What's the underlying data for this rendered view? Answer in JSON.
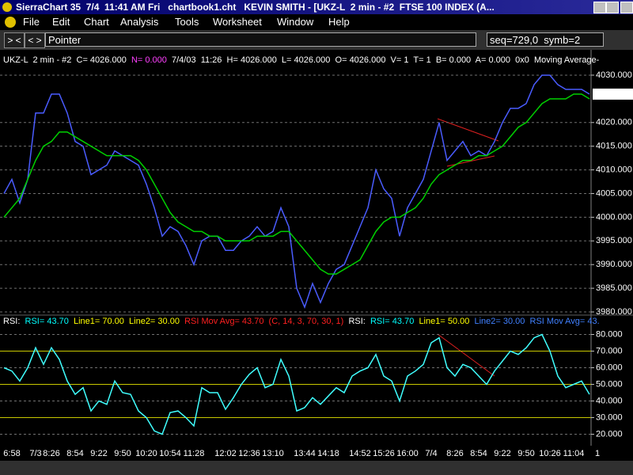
{
  "window_title": "SierraChart 35  7/4  11:41 AM Fri   chartbook1.cht   KEVIN SMITH - [UKZ-L  2 min - #2  FTSE 100 INDEX (A...",
  "menu": [
    "File",
    "Edit",
    "Chart",
    "Analysis",
    "Tools",
    "Worksheet",
    "Window",
    "Help"
  ],
  "toolbar": {
    "buttons": [
      "> <",
      "< >"
    ],
    "tool": "Pointer",
    "status": "seq=729,0  symb=2"
  },
  "chart_data": [
    {
      "type": "line",
      "header_segments": [
        {
          "text": "UKZ-L  2 min - #2  C= 4026.000  ",
          "color": "#ffffff"
        },
        {
          "text": "N= 0.000",
          "color": "#ff40ff"
        },
        {
          "text": "  7/4/03  11:26  H= 4026.000  L= 4026.000  O= 4026.000  V= 1  T= 1  B= 0.000  A= 0.000  0x0  Moving Average-",
          "color": "#ffffff"
        }
      ],
      "categories": [
        null,
        "6:58",
        null,
        null,
        "7/3",
        null,
        "8:26",
        null,
        null,
        "8:54",
        null,
        null,
        "9:22",
        null,
        null,
        "9:50",
        null,
        null,
        "10:20",
        null,
        null,
        "10:54",
        null,
        null,
        "11:28",
        null,
        null,
        null,
        "12:02",
        null,
        null,
        "12:36",
        null,
        null,
        "13:10",
        null,
        null,
        null,
        "13:44",
        null,
        null,
        "14:18",
        null,
        null,
        null,
        "14:52",
        null,
        null,
        "15:26",
        null,
        null,
        "16:00",
        null,
        null,
        "7/4",
        null,
        null,
        "8:26",
        null,
        null,
        "8:54",
        null,
        null,
        "9:22",
        null,
        null,
        "9:50",
        null,
        null,
        "10:26",
        null,
        null,
        "11:04",
        null,
        null,
        "1"
      ],
      "series": [
        {
          "name": "UKZ-L",
          "color": "#4a5cff",
          "values": [
            4005,
            4008,
            4003,
            4008,
            4022,
            4022,
            4026,
            4026,
            4022,
            4016,
            4015,
            4009,
            4010,
            4011,
            4014,
            4013,
            4012,
            4011,
            4007,
            4002,
            3996,
            3998,
            3997,
            3994,
            3990,
            3995,
            3996,
            3996,
            3993,
            3993,
            3995,
            3996,
            3998,
            3996,
            3997,
            4002,
            3998,
            3985,
            3981,
            3986,
            3982,
            3986,
            3989,
            3990,
            3994,
            3998,
            4002,
            4010,
            4006,
            4004,
            3996,
            4002,
            4005,
            4008,
            4014,
            4020,
            4012,
            4014,
            4016,
            4013,
            4014,
            4013,
            4016,
            4020,
            4023,
            4023,
            4024,
            4028,
            4030,
            4030,
            4028,
            4027,
            4027,
            4027,
            4026,
            null
          ]
        },
        {
          "name": "Moving Average",
          "color": "#00d000",
          "values": [
            4000,
            4002,
            4004,
            4008,
            4012,
            4015,
            4016,
            4018,
            4018,
            4017,
            4016,
            4015,
            4014,
            4013,
            4013,
            4013,
            4013,
            4012,
            4010,
            4007,
            4004,
            4001,
            3999,
            3998,
            3997,
            3997,
            3996,
            3996,
            3995,
            3995,
            3995,
            3995,
            3996,
            3996,
            3996,
            3997,
            3997,
            3995,
            3993,
            3991,
            3989,
            3988,
            3988,
            3989,
            3990,
            3991,
            3994,
            3997,
            3999,
            4000,
            4000,
            4001,
            4002,
            4004,
            4007,
            4009,
            4010,
            4011,
            4012,
            4012,
            4013,
            4013,
            4014,
            4015,
            4017,
            4019,
            4020,
            4022,
            4024,
            4025,
            4025,
            4025,
            4026,
            4026,
            4025,
            null
          ]
        }
      ],
      "ylim": [
        3979,
        4032
      ],
      "yticks": [
        {
          "value": 3980,
          "label": "3980.000"
        },
        {
          "value": 3985,
          "label": "3985.000"
        },
        {
          "value": 3990,
          "label": "3990.000"
        },
        {
          "value": 3995,
          "label": "3995.000"
        },
        {
          "value": 4000,
          "label": "4000.000"
        },
        {
          "value": 4005,
          "label": "4005.000"
        },
        {
          "value": 4010,
          "label": "4010.000"
        },
        {
          "value": 4015,
          "label": "4015.000"
        },
        {
          "value": 4020,
          "label": "4020.000"
        },
        {
          "value": 4030,
          "label": "4030.000"
        }
      ],
      "last_value": {
        "value": 4026,
        "label": "4026.000"
      },
      "grid": true
    },
    {
      "type": "line",
      "header_segments": [
        {
          "text": "RSI:  ",
          "color": "#ffffff"
        },
        {
          "text": "RSI= 43.70  ",
          "color": "#00ffff"
        },
        {
          "text": "Line1= 70.00  Line2= 30.00  ",
          "color": "#ffff00"
        },
        {
          "text": "RSI Mov Avg= 43.70  (C, 14, 3, 70, 30, 1)  ",
          "color": "#ff2020"
        },
        {
          "text": "RSI:  ",
          "color": "#ffffff"
        },
        {
          "text": "RSI= 43.70  ",
          "color": "#00ffff"
        },
        {
          "text": "Line1= 50.00  ",
          "color": "#ffff00"
        },
        {
          "text": "Line2= 30.00  RSI Mov Avg= 43.",
          "color": "#4080ff"
        }
      ],
      "series": [
        {
          "name": "RSI",
          "color": "#40ffff",
          "values": [
            60,
            58,
            52,
            60,
            72,
            62,
            72,
            65,
            52,
            44,
            48,
            34,
            40,
            38,
            52,
            45,
            44,
            34,
            30,
            22,
            20,
            33,
            34,
            30,
            25,
            48,
            45,
            45,
            35,
            42,
            50,
            56,
            60,
            48,
            50,
            65,
            55,
            34,
            36,
            42,
            38,
            43,
            48,
            45,
            55,
            58,
            60,
            68,
            55,
            52,
            40,
            55,
            58,
            62,
            75,
            78,
            60,
            55,
            62,
            60,
            55,
            50,
            58,
            64,
            70,
            68,
            72,
            78,
            80,
            70,
            55,
            48,
            50,
            52,
            44,
            null
          ]
        }
      ],
      "reference_lines": [
        70,
        50,
        30
      ],
      "reference_color": "#c8c800",
      "ylim": [
        15,
        85
      ],
      "yticks": [
        {
          "value": 20,
          "label": "20.000"
        },
        {
          "value": 30,
          "label": "30.000"
        },
        {
          "value": 40,
          "label": "40.000"
        },
        {
          "value": 50,
          "label": "50.000"
        },
        {
          "value": 60,
          "label": "60.000"
        },
        {
          "value": 70,
          "label": "70.000"
        },
        {
          "value": 80,
          "label": "80.000"
        }
      ],
      "grid": true
    }
  ]
}
